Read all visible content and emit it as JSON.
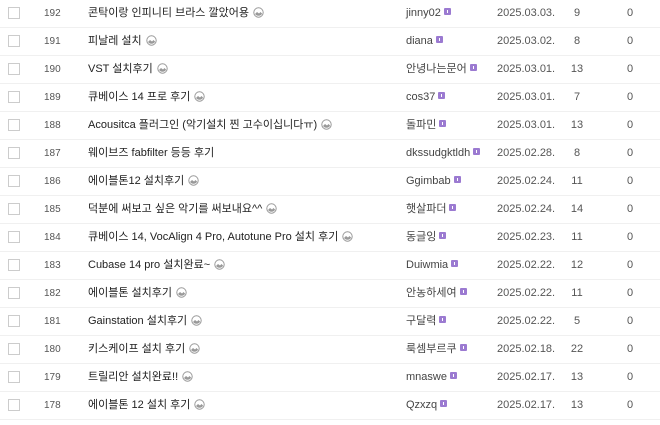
{
  "colors": {
    "badge": "#9b7ad1",
    "divider": "#f0f0f0"
  },
  "rows": [
    {
      "num": "192",
      "title": "콘탁이랑 인피니티 브라스 깔았어용",
      "image_icon": true,
      "author": "jinny02",
      "date": "2025.03.03.",
      "views": "9",
      "likes": "0"
    },
    {
      "num": "191",
      "title": "피날레 설치",
      "image_icon": true,
      "author": "diana",
      "date": "2025.03.02.",
      "views": "8",
      "likes": "0"
    },
    {
      "num": "190",
      "title": "VST 설치후기",
      "image_icon": true,
      "author": "안녕나는문어",
      "date": "2025.03.01.",
      "views": "13",
      "likes": "0"
    },
    {
      "num": "189",
      "title": "큐베이스 14 프로 후기",
      "image_icon": true,
      "author": "cos37",
      "date": "2025.03.01.",
      "views": "7",
      "likes": "0"
    },
    {
      "num": "188",
      "title": "Acousitca 플러그인 (악기설치 찐 고수이십니다ㅠ)",
      "image_icon": true,
      "author": "돌파민",
      "date": "2025.03.01.",
      "views": "13",
      "likes": "0"
    },
    {
      "num": "187",
      "title": "웨이브즈 fabfilter 등등 후기",
      "image_icon": false,
      "author": "dkssudgktldh",
      "date": "2025.02.28.",
      "views": "8",
      "likes": "0"
    },
    {
      "num": "186",
      "title": "에이블톤12 설치후기",
      "image_icon": true,
      "author": "Ggimbab",
      "date": "2025.02.24.",
      "views": "11",
      "likes": "0"
    },
    {
      "num": "185",
      "title": "덕분에 써보고 싶은 악기를 써보내요^^",
      "image_icon": true,
      "author": "햇살파더",
      "date": "2025.02.24.",
      "views": "14",
      "likes": "0"
    },
    {
      "num": "184",
      "title": "큐베이스 14, VocAlign 4 Pro, Autotune Pro 설치 후기",
      "image_icon": true,
      "author": "동글잉",
      "date": "2025.02.23.",
      "views": "11",
      "likes": "0"
    },
    {
      "num": "183",
      "title": "Cubase 14 pro 설치완료~",
      "image_icon": true,
      "author": "Duiwmia",
      "date": "2025.02.22.",
      "views": "12",
      "likes": "0"
    },
    {
      "num": "182",
      "title": "에이블톤 설치후기",
      "image_icon": true,
      "author": "안농하세여",
      "date": "2025.02.22.",
      "views": "11",
      "likes": "0"
    },
    {
      "num": "181",
      "title": "Gainstation 설치후기",
      "image_icon": true,
      "author": "구달력",
      "date": "2025.02.22.",
      "views": "5",
      "likes": "0"
    },
    {
      "num": "180",
      "title": "키스케이프 설치 후기",
      "image_icon": true,
      "author": "룩셈부르쿠",
      "date": "2025.02.18.",
      "views": "22",
      "likes": "0"
    },
    {
      "num": "179",
      "title": "트릴리안 설치완료!!",
      "image_icon": true,
      "author": "mnaswe",
      "date": "2025.02.17.",
      "views": "13",
      "likes": "0"
    },
    {
      "num": "178",
      "title": "에이블톤 12 설치 후기",
      "image_icon": true,
      "author": "Qzxzq",
      "date": "2025.02.17.",
      "views": "13",
      "likes": "0"
    }
  ]
}
